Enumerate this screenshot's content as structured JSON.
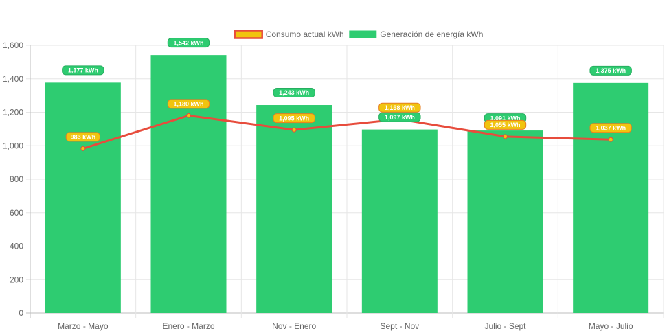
{
  "chart_data": {
    "type": "bar",
    "categories": [
      "Marzo - Mayo",
      "Enero - Marzo",
      "Nov - Enero",
      "Sept - Nov",
      "Julio - Sept",
      "Mayo - Julio"
    ],
    "series": [
      {
        "name": "Consumo actual kWh",
        "type": "line",
        "values": [
          983,
          1180,
          1095,
          1158,
          1055,
          1037
        ],
        "labels": [
          "983 kWh",
          "1,180 kWh",
          "1,095 kWh",
          "1,158 kWh",
          "1,055 kWh",
          "1,037 kWh"
        ],
        "color": "#e74c3c",
        "fill_color": "#f1c40f"
      },
      {
        "name": "Generación de energía kWh",
        "type": "bar",
        "values": [
          1377,
          1542,
          1243,
          1097,
          1091,
          1375
        ],
        "labels": [
          "1,377 kWh",
          "1,542 kWh",
          "1,243 kWh",
          "1,097 kWh",
          "1,091 kWh",
          "1,375 kWh"
        ],
        "color": "#2ecc71"
      }
    ],
    "y_ticks": [
      "0",
      "200",
      "400",
      "600",
      "800",
      "1,000",
      "1,200",
      "1,400",
      "1,600"
    ],
    "ylim": [
      0,
      1600
    ],
    "grid": true,
    "legend_position": "top"
  }
}
